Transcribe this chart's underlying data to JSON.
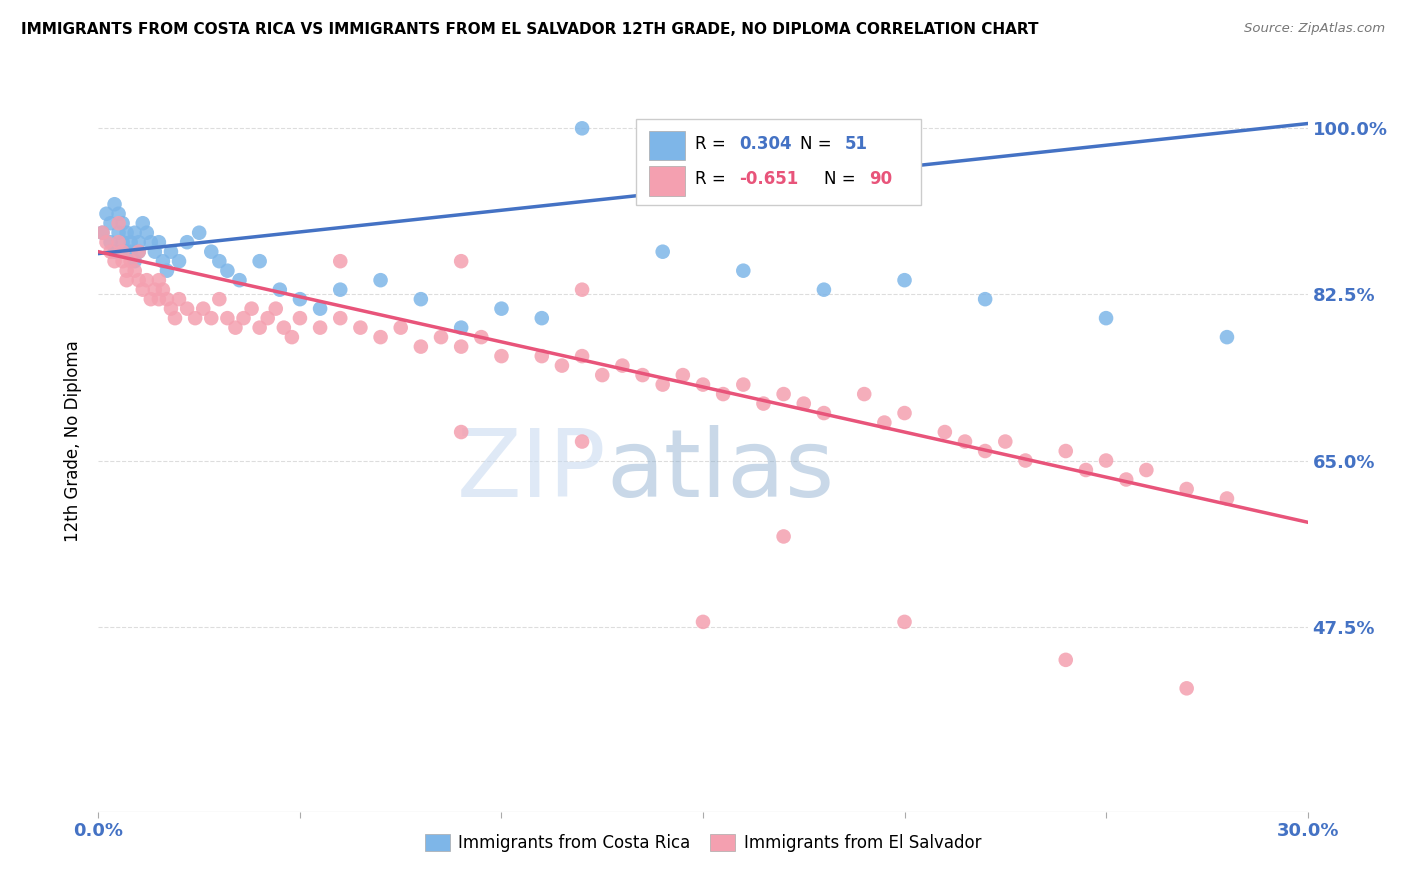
{
  "title": "IMMIGRANTS FROM COSTA RICA VS IMMIGRANTS FROM EL SALVADOR 12TH GRADE, NO DIPLOMA CORRELATION CHART",
  "source": "Source: ZipAtlas.com",
  "ylabel": "12th Grade, No Diploma",
  "ytick_values": [
    1.0,
    0.825,
    0.65,
    0.475
  ],
  "ytick_labels": [
    "100.0%",
    "82.5%",
    "65.0%",
    "47.5%"
  ],
  "xlim": [
    0.0,
    0.3
  ],
  "ylim": [
    0.28,
    1.06
  ],
  "legend_labels": [
    "Immigrants from Costa Rica",
    "Immigrants from El Salvador"
  ],
  "color_costa_rica": "#7EB6E8",
  "color_el_salvador": "#F4A0B0",
  "trendline_color_costa_rica": "#4472C4",
  "trendline_color_el_salvador": "#E8547A",
  "watermark_zip": "ZIP",
  "watermark_atlas": "atlas",
  "cr_trendline_x": [
    0.0,
    0.3
  ],
  "cr_trendline_y": [
    0.868,
    1.005
  ],
  "es_trendline_x": [
    0.0,
    0.3
  ],
  "es_trendline_y": [
    0.87,
    0.585
  ],
  "cr_x": [
    0.001,
    0.002,
    0.003,
    0.003,
    0.004,
    0.004,
    0.005,
    0.005,
    0.006,
    0.006,
    0.007,
    0.007,
    0.008,
    0.008,
    0.009,
    0.009,
    0.01,
    0.01,
    0.011,
    0.012,
    0.013,
    0.014,
    0.015,
    0.016,
    0.017,
    0.018,
    0.02,
    0.022,
    0.025,
    0.028,
    0.03,
    0.032,
    0.035,
    0.04,
    0.045,
    0.05,
    0.055,
    0.06,
    0.07,
    0.08,
    0.09,
    0.1,
    0.11,
    0.12,
    0.14,
    0.16,
    0.18,
    0.2,
    0.22,
    0.25,
    0.28
  ],
  "cr_y": [
    0.89,
    0.91,
    0.88,
    0.9,
    0.92,
    0.87,
    0.89,
    0.91,
    0.88,
    0.9,
    0.87,
    0.89,
    0.88,
    0.87,
    0.89,
    0.86,
    0.88,
    0.87,
    0.9,
    0.89,
    0.88,
    0.87,
    0.88,
    0.86,
    0.85,
    0.87,
    0.86,
    0.88,
    0.89,
    0.87,
    0.86,
    0.85,
    0.84,
    0.86,
    0.83,
    0.82,
    0.81,
    0.83,
    0.84,
    0.82,
    0.79,
    0.81,
    0.8,
    1.0,
    0.87,
    0.85,
    0.83,
    0.84,
    0.82,
    0.8,
    0.78
  ],
  "es_x": [
    0.001,
    0.002,
    0.003,
    0.004,
    0.005,
    0.005,
    0.006,
    0.006,
    0.007,
    0.007,
    0.008,
    0.009,
    0.01,
    0.01,
    0.011,
    0.012,
    0.013,
    0.014,
    0.015,
    0.015,
    0.016,
    0.017,
    0.018,
    0.019,
    0.02,
    0.022,
    0.024,
    0.026,
    0.028,
    0.03,
    0.032,
    0.034,
    0.036,
    0.038,
    0.04,
    0.042,
    0.044,
    0.046,
    0.048,
    0.05,
    0.055,
    0.06,
    0.065,
    0.07,
    0.075,
    0.08,
    0.085,
    0.09,
    0.095,
    0.1,
    0.11,
    0.115,
    0.12,
    0.125,
    0.13,
    0.135,
    0.14,
    0.145,
    0.15,
    0.155,
    0.16,
    0.165,
    0.17,
    0.175,
    0.18,
    0.19,
    0.195,
    0.2,
    0.21,
    0.215,
    0.22,
    0.225,
    0.23,
    0.24,
    0.245,
    0.25,
    0.255,
    0.26,
    0.27,
    0.28,
    0.06,
    0.09,
    0.12,
    0.15,
    0.09,
    0.17,
    0.12,
    0.2,
    0.24,
    0.27
  ],
  "es_y": [
    0.89,
    0.88,
    0.87,
    0.86,
    0.9,
    0.88,
    0.87,
    0.86,
    0.85,
    0.84,
    0.86,
    0.85,
    0.87,
    0.84,
    0.83,
    0.84,
    0.82,
    0.83,
    0.84,
    0.82,
    0.83,
    0.82,
    0.81,
    0.8,
    0.82,
    0.81,
    0.8,
    0.81,
    0.8,
    0.82,
    0.8,
    0.79,
    0.8,
    0.81,
    0.79,
    0.8,
    0.81,
    0.79,
    0.78,
    0.8,
    0.79,
    0.8,
    0.79,
    0.78,
    0.79,
    0.77,
    0.78,
    0.77,
    0.78,
    0.76,
    0.76,
    0.75,
    0.76,
    0.74,
    0.75,
    0.74,
    0.73,
    0.74,
    0.73,
    0.72,
    0.73,
    0.71,
    0.72,
    0.71,
    0.7,
    0.72,
    0.69,
    0.7,
    0.68,
    0.67,
    0.66,
    0.67,
    0.65,
    0.66,
    0.64,
    0.65,
    0.63,
    0.64,
    0.62,
    0.61,
    0.86,
    0.68,
    0.67,
    0.48,
    0.86,
    0.57,
    0.83,
    0.48,
    0.44,
    0.41
  ]
}
